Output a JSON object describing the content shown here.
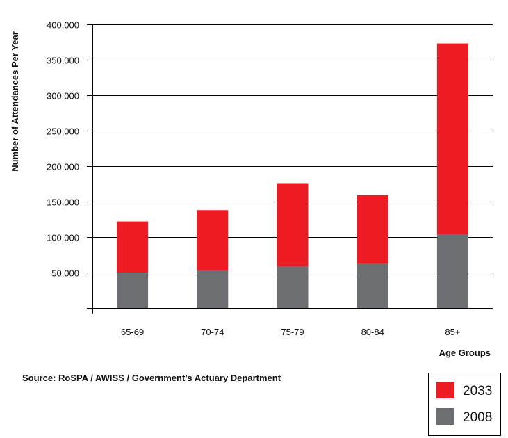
{
  "chart_data": {
    "type": "bar",
    "stacked": true,
    "categories": [
      "65-69",
      "70-74",
      "75-79",
      "80-84",
      "85+"
    ],
    "series": [
      {
        "name": "2008",
        "color": "#6d6e71",
        "values": [
          50000,
          53000,
          59000,
          62000,
          104000
        ]
      },
      {
        "name": "2033",
        "color": "#ed1c24",
        "values": [
          72000,
          85000,
          117000,
          97000,
          269000
        ]
      }
    ],
    "xlabel": "Age Groups",
    "ylabel": "Number of Attendances Per Year",
    "ylim": [
      0,
      400000
    ],
    "yticks": [
      50000,
      100000,
      150000,
      200000,
      250000,
      300000,
      350000,
      400000
    ],
    "ytick_labels": [
      "50,000",
      "100,000",
      "150,000",
      "200,000",
      "250,000",
      "300,000",
      "350,000",
      "400,000"
    ],
    "grid": true,
    "legend_position": "bottom-right",
    "legend_order": [
      "2033",
      "2008"
    ]
  },
  "source_note": "Source: RoSPA / AWISS / Government’s Actuary Department"
}
